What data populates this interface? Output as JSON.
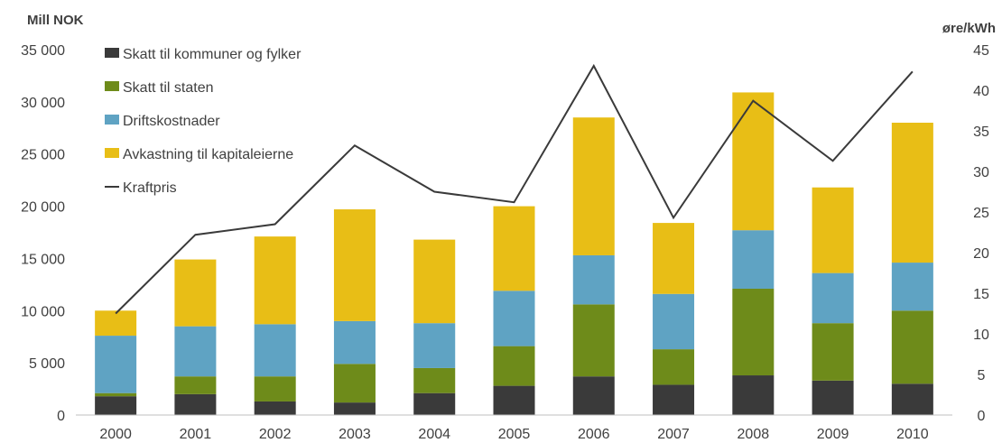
{
  "chart_data": {
    "type": "bar",
    "stacked": true,
    "left_axis_label": "Mill NOK",
    "right_axis_label": "øre/kWh",
    "categories": [
      "2000",
      "2001",
      "2002",
      "2003",
      "2004",
      "2005",
      "2006",
      "2007",
      "2008",
      "2009",
      "2010"
    ],
    "left_ylim": [
      0,
      35000
    ],
    "left_ticks": [
      "0",
      "5 000",
      "10 000",
      "15 000",
      "20 000",
      "25 000",
      "30 000",
      "35 000"
    ],
    "left_tick_values": [
      0,
      5000,
      10000,
      15000,
      20000,
      25000,
      30000,
      35000
    ],
    "right_ylim": [
      0,
      45
    ],
    "right_ticks": [
      "0",
      "5",
      "10",
      "15",
      "20",
      "25",
      "30",
      "35",
      "40",
      "45"
    ],
    "right_tick_values": [
      0,
      5,
      10,
      15,
      20,
      25,
      30,
      35,
      40,
      45
    ],
    "series": [
      {
        "name": "Skatt til kommuner og fylker",
        "color": "#3a3a3a",
        "values": [
          1800,
          2000,
          1300,
          1200,
          2100,
          2800,
          3700,
          2900,
          3800,
          3300,
          3000
        ]
      },
      {
        "name": "Skatt til staten",
        "color": "#6e8b1a",
        "values": [
          300,
          1700,
          2400,
          3700,
          2400,
          3800,
          6900,
          3400,
          8300,
          5500,
          7000
        ]
      },
      {
        "name": "Driftskostnader",
        "color": "#5fa3c3",
        "values": [
          5500,
          4800,
          5000,
          4100,
          4300,
          5300,
          4700,
          5300,
          5600,
          4800,
          4600
        ]
      },
      {
        "name": "Avkastning til kapitaleierne",
        "color": "#e8be16",
        "values": [
          2400,
          6400,
          8400,
          10700,
          8000,
          8100,
          13200,
          6800,
          13200,
          8200,
          13400
        ]
      }
    ],
    "line": {
      "name": "Kraftpris",
      "color": "#3a3a3a",
      "axis": "right",
      "values": [
        12.5,
        22.2,
        23.5,
        33.2,
        27.5,
        26.2,
        43.0,
        24.3,
        38.7,
        31.3,
        42.3
      ]
    },
    "legend_placement": "top-left",
    "grid": false
  }
}
